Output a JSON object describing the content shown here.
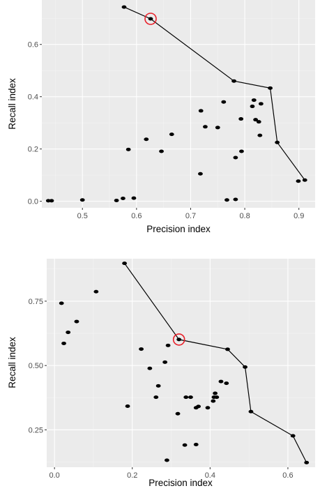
{
  "chart_data": [
    {
      "type": "scatter",
      "xlabel": "Precision index",
      "ylabel": "Recall index",
      "xlim": [
        0.425,
        0.93
      ],
      "ylim": [
        -0.025,
        0.77
      ],
      "x_ticks": [
        0.5,
        0.6,
        0.7,
        0.8,
        0.9
      ],
      "x_tick_labels": [
        "0.5",
        "0.6",
        "0.7",
        "0.8",
        "0.9"
      ],
      "y_ticks": [
        0.0,
        0.2,
        0.4,
        0.6
      ],
      "y_tick_labels": [
        "0.0",
        "0.2",
        "0.4",
        "0.6"
      ],
      "grid": true,
      "points": [
        {
          "x": 0.577,
          "y": 0.743
        },
        {
          "x": 0.626,
          "y": 0.698
        },
        {
          "x": 0.78,
          "y": 0.46
        },
        {
          "x": 0.847,
          "y": 0.433
        },
        {
          "x": 0.86,
          "y": 0.225
        },
        {
          "x": 0.899,
          "y": 0.077
        },
        {
          "x": 0.911,
          "y": 0.081
        },
        {
          "x": 0.761,
          "y": 0.38
        },
        {
          "x": 0.817,
          "y": 0.387
        },
        {
          "x": 0.83,
          "y": 0.373
        },
        {
          "x": 0.814,
          "y": 0.363
        },
        {
          "x": 0.719,
          "y": 0.346
        },
        {
          "x": 0.793,
          "y": 0.315
        },
        {
          "x": 0.82,
          "y": 0.312
        },
        {
          "x": 0.826,
          "y": 0.304
        },
        {
          "x": 0.727,
          "y": 0.285
        },
        {
          "x": 0.75,
          "y": 0.282
        },
        {
          "x": 0.665,
          "y": 0.256
        },
        {
          "x": 0.828,
          "y": 0.252
        },
        {
          "x": 0.618,
          "y": 0.237
        },
        {
          "x": 0.585,
          "y": 0.198
        },
        {
          "x": 0.646,
          "y": 0.191
        },
        {
          "x": 0.794,
          "y": 0.191
        },
        {
          "x": 0.783,
          "y": 0.167
        },
        {
          "x": 0.718,
          "y": 0.105
        },
        {
          "x": 0.437,
          "y": 0.002
        },
        {
          "x": 0.443,
          "y": 0.002
        },
        {
          "x": 0.5,
          "y": 0.005
        },
        {
          "x": 0.563,
          "y": 0.003
        },
        {
          "x": 0.575,
          "y": 0.011
        },
        {
          "x": 0.595,
          "y": 0.012
        },
        {
          "x": 0.767,
          "y": 0.005
        },
        {
          "x": 0.783,
          "y": 0.007
        }
      ],
      "frontier": [
        {
          "x": 0.577,
          "y": 0.743
        },
        {
          "x": 0.626,
          "y": 0.698
        },
        {
          "x": 0.78,
          "y": 0.46
        },
        {
          "x": 0.847,
          "y": 0.433
        },
        {
          "x": 0.86,
          "y": 0.225
        },
        {
          "x": 0.911,
          "y": 0.081
        }
      ],
      "highlight": {
        "x": 0.626,
        "y": 0.698
      },
      "point_color": "#000000",
      "line_color": "#000000",
      "highlight_color": "#e8202a",
      "panel_color": "#ebebeb"
    },
    {
      "type": "scatter",
      "xlabel": "Precision index",
      "ylabel": "Recall index",
      "xlim": [
        -0.02,
        0.67
      ],
      "ylim": [
        0.105,
        0.915
      ],
      "x_ticks": [
        0.0,
        0.2,
        0.4,
        0.6
      ],
      "x_tick_labels": [
        "0.0",
        "0.2",
        "0.4",
        "0.6"
      ],
      "y_ticks": [
        0.25,
        0.5,
        0.75
      ],
      "y_tick_labels": [
        "0.25",
        "0.50",
        "0.75"
      ],
      "grid": true,
      "points": [
        {
          "x": 0.18,
          "y": 0.897
        },
        {
          "x": 0.32,
          "y": 0.601
        },
        {
          "x": 0.445,
          "y": 0.563
        },
        {
          "x": 0.49,
          "y": 0.494
        },
        {
          "x": 0.505,
          "y": 0.321
        },
        {
          "x": 0.613,
          "y": 0.227
        },
        {
          "x": 0.648,
          "y": 0.123
        },
        {
          "x": 0.107,
          "y": 0.787
        },
        {
          "x": 0.018,
          "y": 0.742
        },
        {
          "x": 0.057,
          "y": 0.671
        },
        {
          "x": 0.035,
          "y": 0.629
        },
        {
          "x": 0.024,
          "y": 0.586
        },
        {
          "x": 0.292,
          "y": 0.578
        },
        {
          "x": 0.223,
          "y": 0.564
        },
        {
          "x": 0.284,
          "y": 0.513
        },
        {
          "x": 0.245,
          "y": 0.489
        },
        {
          "x": 0.428,
          "y": 0.438
        },
        {
          "x": 0.442,
          "y": 0.431
        },
        {
          "x": 0.267,
          "y": 0.421
        },
        {
          "x": 0.413,
          "y": 0.392
        },
        {
          "x": 0.41,
          "y": 0.377
        },
        {
          "x": 0.417,
          "y": 0.377
        },
        {
          "x": 0.261,
          "y": 0.377
        },
        {
          "x": 0.338,
          "y": 0.377
        },
        {
          "x": 0.35,
          "y": 0.377
        },
        {
          "x": 0.408,
          "y": 0.362
        },
        {
          "x": 0.37,
          "y": 0.341
        },
        {
          "x": 0.364,
          "y": 0.336
        },
        {
          "x": 0.394,
          "y": 0.336
        },
        {
          "x": 0.188,
          "y": 0.342
        },
        {
          "x": 0.317,
          "y": 0.313
        },
        {
          "x": 0.335,
          "y": 0.191
        },
        {
          "x": 0.364,
          "y": 0.193
        },
        {
          "x": 0.289,
          "y": 0.132
        }
      ],
      "frontier": [
        {
          "x": 0.18,
          "y": 0.897
        },
        {
          "x": 0.32,
          "y": 0.601
        },
        {
          "x": 0.445,
          "y": 0.563
        },
        {
          "x": 0.49,
          "y": 0.494
        },
        {
          "x": 0.505,
          "y": 0.321
        },
        {
          "x": 0.613,
          "y": 0.227
        },
        {
          "x": 0.648,
          "y": 0.123
        }
      ],
      "highlight": {
        "x": 0.32,
        "y": 0.601
      },
      "point_color": "#000000",
      "line_color": "#000000",
      "highlight_color": "#e8202a",
      "panel_color": "#ebebeb"
    }
  ]
}
